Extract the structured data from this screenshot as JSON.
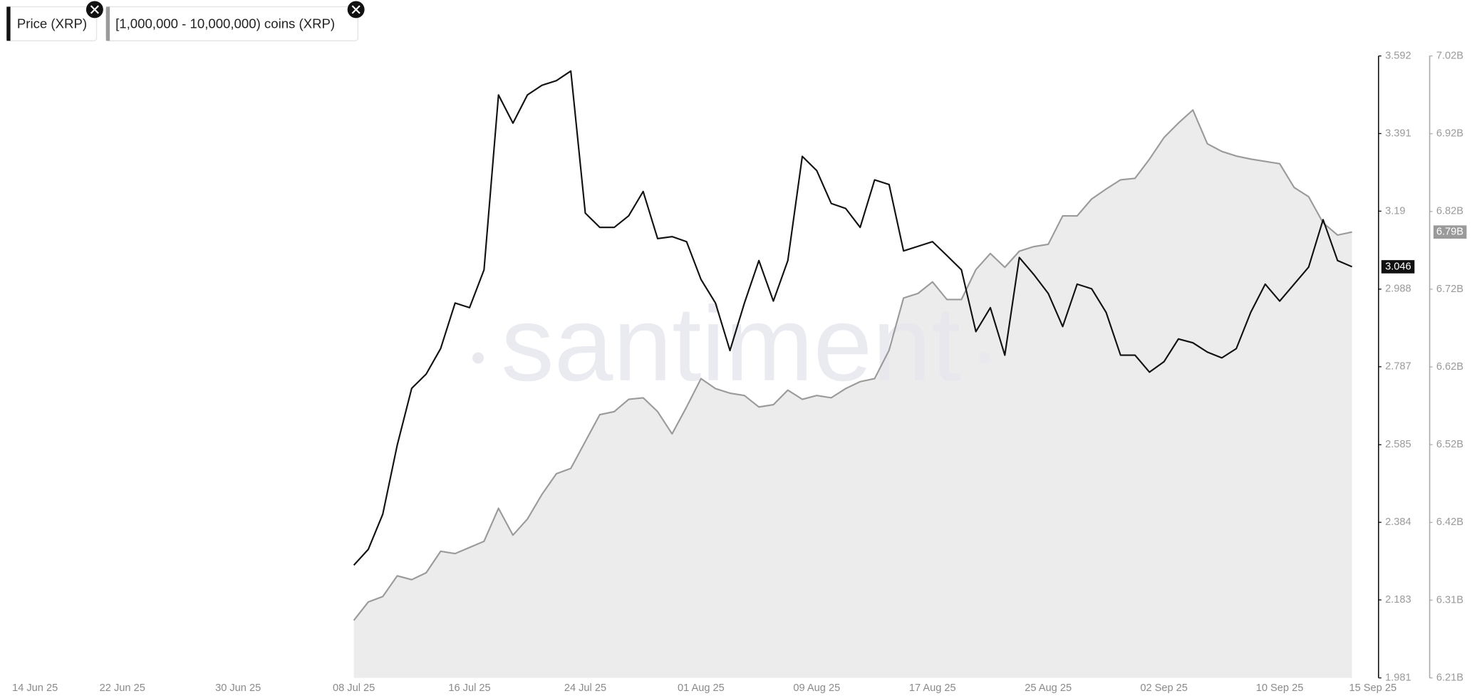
{
  "chart_data": {
    "type": "line",
    "watermark": "santiment",
    "x": [
      "2025-07-08",
      "2025-07-09",
      "2025-07-10",
      "2025-07-11",
      "2025-07-12",
      "2025-07-13",
      "2025-07-14",
      "2025-07-15",
      "2025-07-16",
      "2025-07-17",
      "2025-07-18",
      "2025-07-19",
      "2025-07-20",
      "2025-07-21",
      "2025-07-22",
      "2025-07-23",
      "2025-07-24",
      "2025-07-25",
      "2025-07-26",
      "2025-07-27",
      "2025-07-28",
      "2025-07-29",
      "2025-07-30",
      "2025-07-31",
      "2025-08-01",
      "2025-08-02",
      "2025-08-03",
      "2025-08-04",
      "2025-08-05",
      "2025-08-06",
      "2025-08-07",
      "2025-08-08",
      "2025-08-09",
      "2025-08-10",
      "2025-08-11",
      "2025-08-12",
      "2025-08-13",
      "2025-08-14",
      "2025-08-15",
      "2025-08-16",
      "2025-08-17",
      "2025-08-18",
      "2025-08-19",
      "2025-08-20",
      "2025-08-21",
      "2025-08-22",
      "2025-08-23",
      "2025-08-24",
      "2025-08-25",
      "2025-08-26",
      "2025-08-27",
      "2025-08-28",
      "2025-08-29",
      "2025-08-30",
      "2025-08-31",
      "2025-09-01",
      "2025-09-02",
      "2025-09-03",
      "2025-09-04",
      "2025-09-05",
      "2025-09-06",
      "2025-09-07",
      "2025-09-08",
      "2025-09-09",
      "2025-09-10",
      "2025-09-11",
      "2025-09-12",
      "2025-09-13",
      "2025-09-14",
      "2025-09-15"
    ],
    "xlim": [
      "2025-06-14",
      "2025-09-15"
    ],
    "xticks": [
      {
        "value": "2025-06-14",
        "label": "14 Jun 25"
      },
      {
        "value": "2025-06-22",
        "label": "22 Jun 25"
      },
      {
        "value": "2025-06-30",
        "label": "30 Jun 25"
      },
      {
        "value": "2025-07-08",
        "label": "08 Jul 25"
      },
      {
        "value": "2025-07-16",
        "label": "16 Jul 25"
      },
      {
        "value": "2025-07-24",
        "label": "24 Jul 25"
      },
      {
        "value": "2025-08-01",
        "label": "01 Aug 25"
      },
      {
        "value": "2025-08-09",
        "label": "09 Aug 25"
      },
      {
        "value": "2025-08-17",
        "label": "17 Aug 25"
      },
      {
        "value": "2025-08-25",
        "label": "25 Aug 25"
      },
      {
        "value": "2025-09-02",
        "label": "02 Sep 25"
      },
      {
        "value": "2025-09-10",
        "label": "10 Sep 25"
      },
      {
        "value": "2025-09-15",
        "label": "15 Sep 25"
      }
    ],
    "ylim": [
      1.981,
      3.592
    ],
    "yticks": [
      1.981,
      2.183,
      2.384,
      2.585,
      2.787,
      2.988,
      3.19,
      3.391,
      3.592
    ],
    "y2lim": [
      6.213,
      7.0234
    ],
    "y2ticks": [
      {
        "value": 6.213,
        "label": "6.21B"
      },
      {
        "value": 6.3143,
        "label": "6.31B"
      },
      {
        "value": 6.4156,
        "label": "6.42B"
      },
      {
        "value": 6.5169,
        "label": "6.52B"
      },
      {
        "value": 6.6182,
        "label": "6.62B"
      },
      {
        "value": 6.7195,
        "label": "6.72B"
      },
      {
        "value": 6.8208,
        "label": "6.82B"
      },
      {
        "value": 6.9221,
        "label": "6.92B"
      },
      {
        "value": 7.0234,
        "label": "7.02B"
      }
    ],
    "series": [
      {
        "name": "Price (XRP)",
        "color": "#111111",
        "axis": "y",
        "values": [
          2.273,
          2.314,
          2.405,
          2.584,
          2.731,
          2.768,
          2.834,
          2.952,
          2.94,
          3.038,
          3.491,
          3.418,
          3.491,
          3.516,
          3.528,
          3.553,
          3.185,
          3.148,
          3.148,
          3.178,
          3.241,
          3.119,
          3.124,
          3.111,
          3.013,
          2.952,
          2.829,
          2.952,
          3.062,
          2.957,
          3.062,
          3.332,
          3.295,
          3.21,
          3.197,
          3.148,
          3.271,
          3.259,
          3.087,
          3.099,
          3.111,
          3.075,
          3.038,
          2.878,
          2.94,
          2.817,
          3.07,
          3.026,
          2.977,
          2.891,
          3.001,
          2.989,
          2.928,
          2.817,
          2.817,
          2.773,
          2.8,
          2.859,
          2.849,
          2.825,
          2.81,
          2.834,
          2.928,
          3.001,
          2.957,
          3.001,
          3.045,
          3.168,
          3.062,
          3.046
        ]
      },
      {
        "name": "[1,000,000 - 10,000,000) coins (XRP)",
        "color": "#9a9a9a",
        "fill": "#ececec",
        "axis": "y2",
        "values": [
          6.288,
          6.312,
          6.319,
          6.346,
          6.341,
          6.35,
          6.378,
          6.375,
          6.383,
          6.391,
          6.434,
          6.399,
          6.42,
          6.452,
          6.479,
          6.486,
          6.521,
          6.556,
          6.56,
          6.576,
          6.578,
          6.56,
          6.531,
          6.566,
          6.603,
          6.59,
          6.584,
          6.581,
          6.566,
          6.569,
          6.588,
          6.576,
          6.581,
          6.578,
          6.59,
          6.599,
          6.603,
          6.64,
          6.708,
          6.714,
          6.729,
          6.706,
          6.706,
          6.745,
          6.766,
          6.748,
          6.769,
          6.775,
          6.778,
          6.815,
          6.815,
          6.837,
          6.85,
          6.862,
          6.864,
          6.889,
          6.917,
          6.936,
          6.953,
          6.909,
          6.899,
          6.893,
          6.889,
          6.886,
          6.883,
          6.852,
          6.84,
          6.806,
          6.79,
          6.794
        ],
        "value_labels": [
          null,
          null,
          null,
          null,
          null,
          null,
          null,
          null,
          null,
          null,
          null,
          null,
          null,
          null,
          null,
          null,
          null,
          null,
          null,
          null,
          null,
          null,
          null,
          null,
          null,
          null,
          null,
          null,
          null,
          null,
          null,
          null,
          null,
          null,
          null,
          null,
          null,
          null,
          null,
          null,
          null,
          null,
          null,
          null,
          null,
          null,
          null,
          null,
          null,
          null,
          null,
          null,
          null,
          null,
          null,
          null,
          null,
          null,
          null,
          null,
          null,
          null,
          null,
          null,
          null,
          null,
          null,
          null,
          null,
          "6.79B"
        ]
      }
    ]
  }
}
